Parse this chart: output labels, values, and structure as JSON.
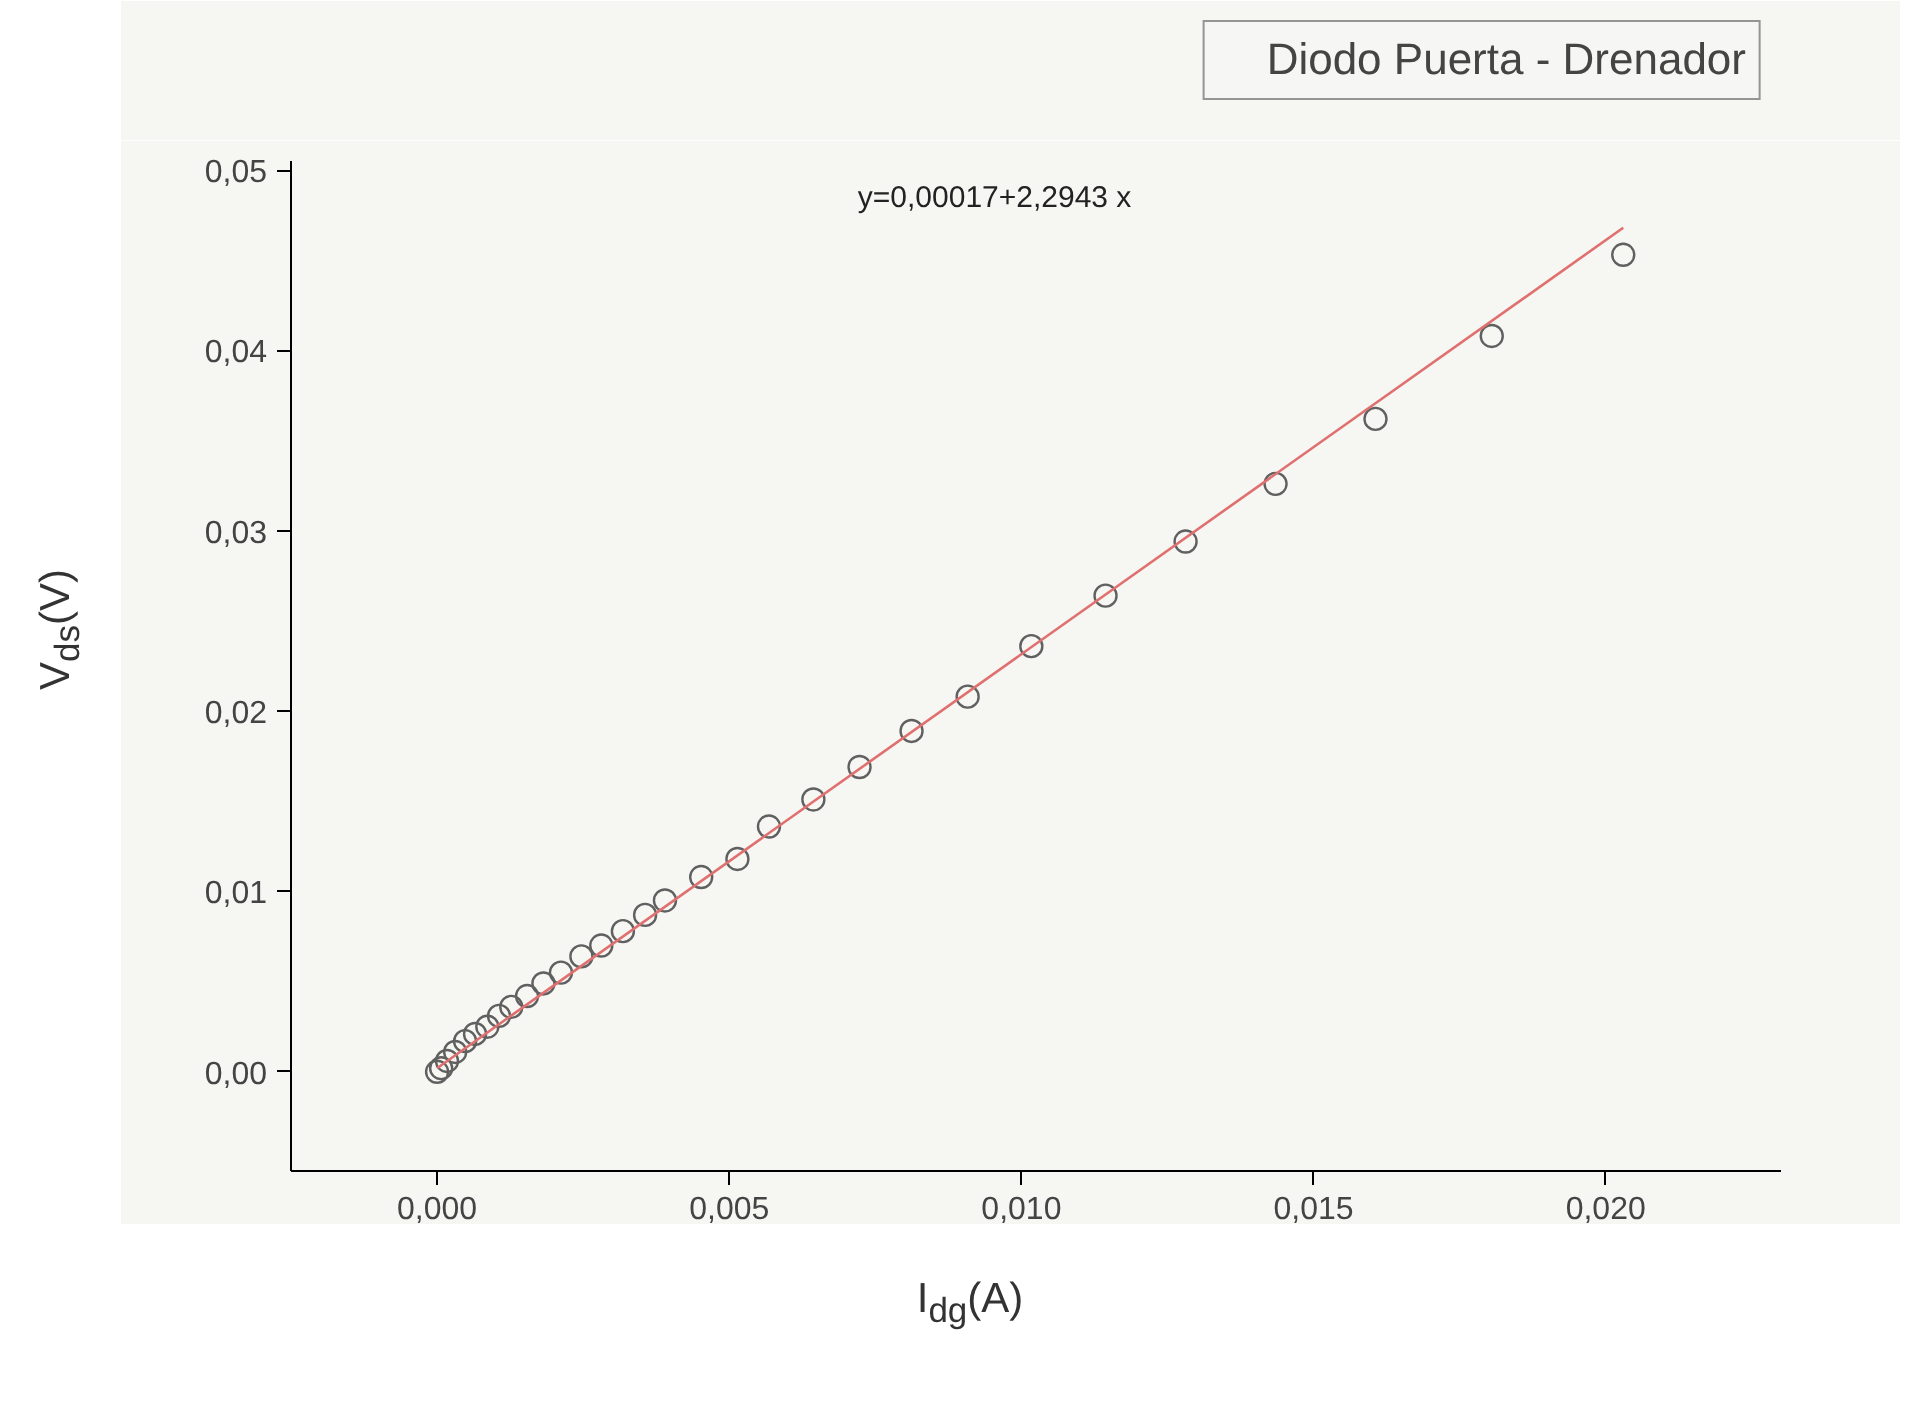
{
  "chart_data": {
    "type": "scatter",
    "xlabel": "I$_{dg}$(A)",
    "ylabel": "V$_{ds}$(V)",
    "annotations": [
      "y=0,00017+2,2943 x"
    ],
    "series": [
      {
        "name": "Diodo Puerta - Drenador",
        "color": "#606060",
        "marker": "circle",
        "x": [
          0.0203,
          0.01805,
          0.01606,
          0.01435,
          0.01281,
          0.01144,
          0.01017,
          0.00908,
          0.00812,
          0.00723,
          0.00644,
          0.00568,
          0.00514,
          0.00452,
          0.0039,
          0.00356,
          0.00318,
          0.00281,
          0.00247,
          0.00212,
          0.00182,
          0.00154,
          0.00127,
          0.00106,
          0.00086,
          0.00065,
          0.00048,
          0.00031,
          0.00017,
          7e-05,
          0
        ],
        "values": [
          0.0453,
          0.0408,
          0.0362,
          0.0326,
          0.0294,
          0.0264,
          0.0236,
          0.0208,
          0.0189,
          0.0169,
          0.0151,
          0.0136,
          0.0118,
          0.0108,
          0.0095,
          0.0087,
          0.0078,
          0.007,
          0.0064,
          0.0055,
          0.0049,
          0.0042,
          0.0036,
          0.0031,
          0.0025,
          0.0021,
          0.0017,
          0.0011,
          0.0006,
          0.0002,
          0
        ]
      },
      {
        "type": "line",
        "color": "#e07070",
        "x": [
          0,
          0.0203
        ],
        "values": [
          0.0002,
          0.0468
        ]
      }
    ],
    "xlim": [
      -0.0025,
      0.023
    ],
    "ylim": [
      -0.0055,
      0.0505
    ],
    "xticks": [
      {
        "value": 0,
        "label": "0,000"
      },
      {
        "value": 0.005,
        "label": "0,005"
      },
      {
        "value": 0.01,
        "label": "0,010"
      },
      {
        "value": 0.015,
        "label": "0,015"
      },
      {
        "value": 0.02,
        "label": "0,020"
      }
    ],
    "yticks": [
      {
        "value": 0,
        "label": "0,00"
      },
      {
        "value": 0.01,
        "label": "0,01"
      },
      {
        "value": 0.02,
        "label": "0,02"
      },
      {
        "value": 0.03,
        "label": "0,03"
      },
      {
        "value": 0.04,
        "label": "0,04"
      },
      {
        "value": 0.05,
        "label": "0,05"
      }
    ],
    "grid": false,
    "legend": "top right"
  }
}
